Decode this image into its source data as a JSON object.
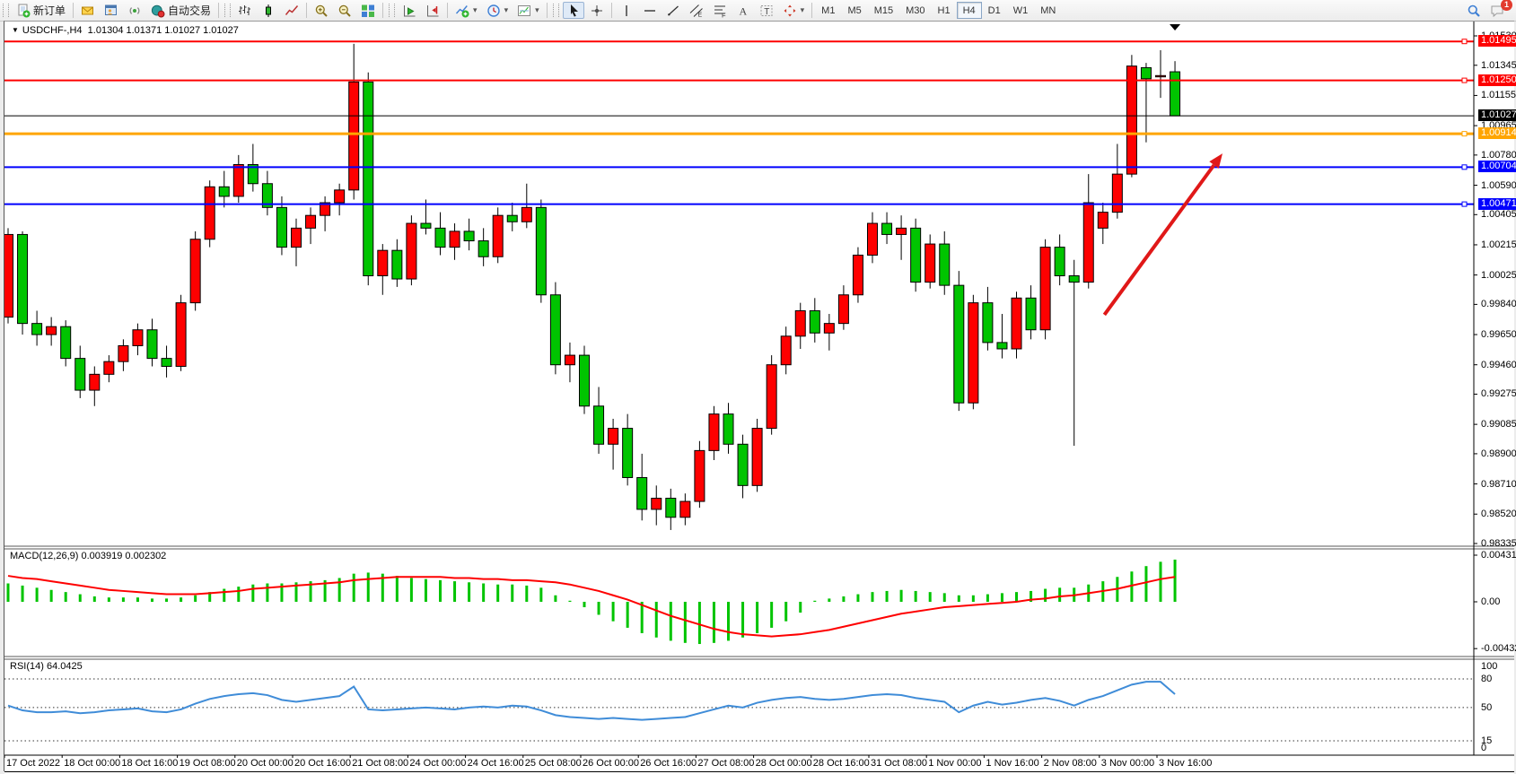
{
  "toolbar": {
    "new_order_label": "新订单",
    "autotrading_label": "自动交易",
    "groups": [
      {
        "handle": true,
        "items": [
          {
            "name": "new-order-button",
            "icon": "doc-plus",
            "label_key": "new_order_label"
          }
        ]
      },
      {
        "handle": false,
        "items": [
          {
            "name": "metaeditor-button",
            "icon": "envelope"
          },
          {
            "name": "market-watch-button",
            "icon": "market"
          },
          {
            "name": "broadcast-button",
            "icon": "broadcast"
          },
          {
            "name": "autotrading-button",
            "icon": "autotrade",
            "label_key": "autotrading_label"
          }
        ]
      },
      {
        "handle": true,
        "items": [
          {
            "name": "bar-chart-button",
            "icon": "barchart"
          },
          {
            "name": "candlestick-chart-button",
            "icon": "candle"
          },
          {
            "name": "line-chart-button",
            "icon": "linechart"
          }
        ]
      },
      {
        "handle": false,
        "items": [
          {
            "name": "zoom-in-button",
            "icon": "zoom-in"
          },
          {
            "name": "zoom-out-button",
            "icon": "zoom-out"
          },
          {
            "name": "tile-windows-button",
            "icon": "tiles"
          }
        ]
      },
      {
        "handle": true,
        "items": [
          {
            "name": "auto-scroll-button",
            "icon": "autoscroll"
          },
          {
            "name": "chart-shift-button",
            "icon": "chart-shift"
          }
        ]
      },
      {
        "handle": false,
        "items": [
          {
            "name": "indicators-button",
            "icon": "indicators",
            "dropdown": true
          },
          {
            "name": "periods-button",
            "icon": "clock",
            "dropdown": true
          },
          {
            "name": "templates-button",
            "icon": "template",
            "dropdown": true
          }
        ]
      },
      {
        "handle": true,
        "items": [
          {
            "name": "cursor-button",
            "icon": "cursor",
            "pressed": true
          },
          {
            "name": "crosshair-button",
            "icon": "crosshair"
          }
        ]
      },
      {
        "handle": false,
        "items": [
          {
            "name": "vertical-line-button",
            "icon": "vline"
          },
          {
            "name": "horizontal-line-button",
            "icon": "hline"
          },
          {
            "name": "trendline-button",
            "icon": "trendline"
          },
          {
            "name": "equidistant-channel-button",
            "icon": "channel"
          },
          {
            "name": "fibonacci-button",
            "icon": "fibo"
          },
          {
            "name": "text-button",
            "icon": "text-a"
          },
          {
            "name": "text-label-button",
            "icon": "text-label"
          },
          {
            "name": "arrows-button",
            "icon": "shapes",
            "dropdown": true
          }
        ]
      }
    ],
    "timeframes": [
      "M1",
      "M5",
      "M15",
      "M30",
      "H1",
      "H4",
      "D1",
      "W1",
      "MN"
    ],
    "active_timeframe": "H4",
    "notification_count": "1"
  },
  "header": {
    "symbol": "USDCHF-,H4",
    "ohlc": "1.01304 1.01371 1.01027 1.01027"
  },
  "chart_data": {
    "type": "candlestick",
    "symbol": "USDCHF-",
    "timeframe": "H4",
    "open": "1.01304",
    "high": "1.01371",
    "low": "1.01027",
    "close": "1.01027",
    "price_axis_ticks": [
      "1.01530",
      "1.01345",
      "1.01155",
      "1.00965",
      "1.00780",
      "1.00590",
      "1.00405",
      "1.00215",
      "1.00025",
      "0.99840",
      "0.99650",
      "0.99460",
      "0.99275",
      "0.99085",
      "0.98900",
      "0.98710",
      "0.98520",
      "0.98335"
    ],
    "horizontal_lines": [
      {
        "price": 1.01495,
        "label": "1.01495",
        "color": "#fe0000",
        "width": 2
      },
      {
        "price": 1.0125,
        "label": "1.01250",
        "color": "#fe0000",
        "width": 2
      },
      {
        "price": 1.01027,
        "label": "1.01027",
        "color": "#000000",
        "width": 1
      },
      {
        "price": 1.00914,
        "label": "1.00914",
        "color": "#ffa500",
        "width": 3
      },
      {
        "price": 1.00704,
        "label": "1.00704",
        "color": "#0000fe",
        "width": 2
      },
      {
        "price": 1.00471,
        "label": "1.00471",
        "color": "#0000fe",
        "width": 2
      }
    ],
    "time_labels": [
      "17 Oct 2022",
      "18 Oct 00:00",
      "18 Oct 16:00",
      "19 Oct 08:00",
      "20 Oct 00:00",
      "20 Oct 16:00",
      "21 Oct 08:00",
      "24 Oct 00:00",
      "24 Oct 16:00",
      "25 Oct 08:00",
      "26 Oct 00:00",
      "26 Oct 16:00",
      "27 Oct 08:00",
      "28 Oct 00:00",
      "28 Oct 16:00",
      "31 Oct 08:00",
      "1 Nov 00:00",
      "1 Nov 16:00",
      "2 Nov 08:00",
      "3 Nov 00:00",
      "3 Nov 16:00"
    ],
    "candles": [
      [
        0.9976,
        1.0032,
        0.9972,
        1.0028
      ],
      [
        1.0028,
        1.003,
        0.9965,
        0.9972
      ],
      [
        0.9972,
        0.998,
        0.9958,
        0.9965
      ],
      [
        0.9965,
        0.9976,
        0.9958,
        0.997
      ],
      [
        0.997,
        0.9974,
        0.9945,
        0.995
      ],
      [
        0.995,
        0.9958,
        0.9925,
        0.993
      ],
      [
        0.993,
        0.9945,
        0.992,
        0.994
      ],
      [
        0.994,
        0.9952,
        0.9935,
        0.9948
      ],
      [
        0.9948,
        0.9962,
        0.9942,
        0.9958
      ],
      [
        0.9958,
        0.9972,
        0.9952,
        0.9968
      ],
      [
        0.9968,
        0.9975,
        0.9945,
        0.995
      ],
      [
        0.995,
        0.9958,
        0.9938,
        0.9945
      ],
      [
        0.9945,
        0.999,
        0.9942,
        0.9985
      ],
      [
        0.9985,
        1.003,
        0.998,
        1.0025
      ],
      [
        1.0025,
        1.0062,
        1.002,
        1.0058
      ],
      [
        1.0058,
        1.0068,
        1.0045,
        1.0052
      ],
      [
        1.0052,
        1.0078,
        1.0048,
        1.0072
      ],
      [
        1.0072,
        1.0085,
        1.0055,
        1.006
      ],
      [
        1.006,
        1.0068,
        1.004,
        1.0045
      ],
      [
        1.0045,
        1.0052,
        1.0015,
        1.002
      ],
      [
        1.002,
        1.0038,
        1.0008,
        1.0032
      ],
      [
        1.0032,
        1.0045,
        1.0022,
        1.004
      ],
      [
        1.004,
        1.0052,
        1.003,
        1.0048
      ],
      [
        1.0048,
        1.006,
        1.004,
        1.0056
      ],
      [
        1.0056,
        1.0148,
        1.005,
        1.0124
      ],
      [
        1.0124,
        1.013,
        0.9996,
        1.0002
      ],
      [
        1.0002,
        1.0022,
        0.999,
        1.0018
      ],
      [
        1.0018,
        1.0025,
        0.9995,
        1.0
      ],
      [
        1.0,
        1.004,
        0.9996,
        1.0035
      ],
      [
        1.0035,
        1.005,
        1.0028,
        1.0032
      ],
      [
        1.0032,
        1.0042,
        1.0015,
        1.002
      ],
      [
        1.002,
        1.0035,
        1.0012,
        1.003
      ],
      [
        1.003,
        1.0038,
        1.0018,
        1.0024
      ],
      [
        1.0024,
        1.0032,
        1.0008,
        1.0014
      ],
      [
        1.0014,
        1.0045,
        1.001,
        1.004
      ],
      [
        1.004,
        1.0048,
        1.003,
        1.0036
      ],
      [
        1.0036,
        1.006,
        1.0032,
        1.0045
      ],
      [
        1.0045,
        1.005,
        0.9985,
        0.999
      ],
      [
        0.999,
        0.9998,
        0.994,
        0.9946
      ],
      [
        0.9946,
        0.996,
        0.9935,
        0.9952
      ],
      [
        0.9952,
        0.9958,
        0.9915,
        0.992
      ],
      [
        0.992,
        0.9932,
        0.989,
        0.9896
      ],
      [
        0.9896,
        0.9912,
        0.988,
        0.9906
      ],
      [
        0.9906,
        0.9915,
        0.987,
        0.9875
      ],
      [
        0.9875,
        0.989,
        0.9848,
        0.9855
      ],
      [
        0.9855,
        0.987,
        0.9845,
        0.9862
      ],
      [
        0.9862,
        0.9868,
        0.9842,
        0.985
      ],
      [
        0.985,
        0.9865,
        0.9845,
        0.986
      ],
      [
        0.986,
        0.9898,
        0.9856,
        0.9892
      ],
      [
        0.9892,
        0.992,
        0.9886,
        0.9915
      ],
      [
        0.9915,
        0.9922,
        0.989,
        0.9896
      ],
      [
        0.9896,
        0.9902,
        0.9862,
        0.987
      ],
      [
        0.987,
        0.9912,
        0.9866,
        0.9906
      ],
      [
        0.9906,
        0.9952,
        0.9902,
        0.9946
      ],
      [
        0.9946,
        0.997,
        0.994,
        0.9964
      ],
      [
        0.9964,
        0.9985,
        0.9956,
        0.998
      ],
      [
        0.998,
        0.9988,
        0.996,
        0.9966
      ],
      [
        0.9966,
        0.9978,
        0.9955,
        0.9972
      ],
      [
        0.9972,
        0.9996,
        0.9968,
        0.999
      ],
      [
        0.999,
        1.002,
        0.9985,
        1.0015
      ],
      [
        1.0015,
        1.0042,
        1.001,
        1.0035
      ],
      [
        1.0035,
        1.0042,
        1.0022,
        1.0028
      ],
      [
        1.0028,
        1.004,
        1.0012,
        1.0032
      ],
      [
        1.0032,
        1.0038,
        0.9992,
        0.9998
      ],
      [
        0.9998,
        1.0028,
        0.9994,
        1.0022
      ],
      [
        1.0022,
        1.003,
        0.999,
        0.9996
      ],
      [
        0.9996,
        1.0005,
        0.9917,
        0.9922
      ],
      [
        0.9922,
        0.999,
        0.9918,
        0.9985
      ],
      [
        0.9985,
        0.9995,
        0.9955,
        0.996
      ],
      [
        0.996,
        0.9978,
        0.995,
        0.9956
      ],
      [
        0.9956,
        0.9992,
        0.995,
        0.9988
      ],
      [
        0.9988,
        0.9996,
        0.9962,
        0.9968
      ],
      [
        0.9968,
        1.0025,
        0.9962,
        1.002
      ],
      [
        1.002,
        1.0028,
        0.9996,
        1.0002
      ],
      [
        1.0002,
        1.0012,
        0.9895,
        0.9998
      ],
      [
        0.9998,
        1.0066,
        0.9994,
        1.0048
      ],
      [
        1.0032,
        1.0048,
        1.0022,
        1.0042
      ],
      [
        1.0042,
        1.0085,
        1.0038,
        1.0066
      ],
      [
        1.0066,
        1.0141,
        1.0064,
        1.0134
      ],
      [
        1.0133,
        1.0136,
        1.0086,
        1.0126
      ],
      [
        1.0128,
        1.0144,
        1.0114,
        1.0128
      ],
      [
        1.01304,
        1.01371,
        1.01027,
        1.01027
      ]
    ],
    "colors": {
      "bull": "#fe0000",
      "bear": "#00c400",
      "wick": "#000000",
      "body_outline": "#000000",
      "background": "#ffffff"
    },
    "macd": {
      "title": "MACD(12,26,9)",
      "values": "0.003919 0.002302",
      "axis_ticks": [
        {
          "label": "0.004312",
          "v": 0.004312
        },
        {
          "label": "0.00",
          "v": 0
        },
        {
          "label": "-0.004328",
          "v": -0.004328
        }
      ],
      "hist_color": "#00c400",
      "signal_color": "#fe0000",
      "histogram": [
        0.0017,
        0.0015,
        0.0013,
        0.0011,
        0.0009,
        0.0007,
        0.0005,
        0.0004,
        0.0004,
        0.0004,
        0.0003,
        0.0003,
        0.0004,
        0.0006,
        0.0009,
        0.0012,
        0.0014,
        0.0016,
        0.0017,
        0.0017,
        0.0018,
        0.0019,
        0.002,
        0.0022,
        0.0026,
        0.0027,
        0.0026,
        0.0024,
        0.0022,
        0.0021,
        0.002,
        0.0019,
        0.0018,
        0.0017,
        0.0016,
        0.0016,
        0.0015,
        0.0013,
        0.0006,
        0.0001,
        -0.0005,
        -0.0012,
        -0.0018,
        -0.0024,
        -0.0029,
        -0.0033,
        -0.0036,
        -0.0038,
        -0.0039,
        -0.0038,
        -0.0036,
        -0.0033,
        -0.0029,
        -0.0024,
        -0.0018,
        -0.001,
        0.0001,
        0.0003,
        0.0005,
        0.0007,
        0.0009,
        0.001,
        0.0011,
        0.001,
        0.0009,
        0.0008,
        0.0006,
        0.0006,
        0.0007,
        0.0008,
        0.0009,
        0.001,
        0.0012,
        0.0013,
        0.0013,
        0.0016,
        0.0019,
        0.0023,
        0.0028,
        0.0033,
        0.0037,
        0.0039
      ],
      "signal": [
        0.0024,
        0.0022,
        0.0021,
        0.0019,
        0.0017,
        0.0015,
        0.0013,
        0.0011,
        0.001,
        0.0009,
        0.0008,
        0.0007,
        0.0007,
        0.0007,
        0.0008,
        0.0009,
        0.001,
        0.0012,
        0.0013,
        0.0014,
        0.0015,
        0.0016,
        0.0017,
        0.0018,
        0.002,
        0.0021,
        0.0022,
        0.0023,
        0.0023,
        0.0023,
        0.0023,
        0.0022,
        0.0022,
        0.0021,
        0.0021,
        0.002,
        0.002,
        0.0019,
        0.0018,
        0.0016,
        0.0013,
        0.001,
        0.0006,
        0.0002,
        -0.0003,
        -0.0008,
        -0.0013,
        -0.0017,
        -0.0021,
        -0.0025,
        -0.0028,
        -0.003,
        -0.0031,
        -0.0032,
        -0.0031,
        -0.003,
        -0.0028,
        -0.0026,
        -0.0023,
        -0.002,
        -0.0017,
        -0.0014,
        -0.0011,
        -0.0009,
        -0.0007,
        -0.0005,
        -0.0004,
        -0.0003,
        -0.0002,
        -0.0001,
        0.0,
        0.0002,
        0.0003,
        0.0005,
        0.0006,
        0.0008,
        0.001,
        0.0012,
        0.0015,
        0.0018,
        0.0021,
        0.0023
      ]
    },
    "rsi": {
      "title": "RSI(14)",
      "value": "64.0425",
      "color": "#3f8cd8",
      "levels": [
        80,
        50,
        15
      ],
      "axis_ticks": [
        {
          "label": "100",
          "v": 100
        },
        {
          "label": "80",
          "v": 80
        },
        {
          "label": "50",
          "v": 50
        },
        {
          "label": "15",
          "v": 15
        },
        {
          "label": "0",
          "v": 0
        }
      ],
      "series": [
        52,
        47,
        45,
        45,
        46,
        44,
        45,
        47,
        48,
        49,
        46,
        45,
        48,
        54,
        59,
        62,
        64,
        65,
        63,
        58,
        56,
        58,
        60,
        62,
        72,
        48,
        47,
        48,
        49,
        50,
        49,
        48,
        50,
        51,
        50,
        52,
        51,
        47,
        42,
        40,
        39,
        38,
        39,
        38,
        37,
        38,
        39,
        40,
        44,
        48,
        52,
        50,
        55,
        58,
        60,
        61,
        59,
        58,
        59,
        61,
        63,
        64,
        63,
        60,
        58,
        56,
        45,
        52,
        56,
        53,
        55,
        58,
        60,
        57,
        52,
        58,
        62,
        68,
        74,
        77,
        77,
        64
      ]
    },
    "trend_arrow": {
      "from_bar": 76.1,
      "from_price": 0.99775,
      "to_bar": 84.3,
      "to_price": 1.0079,
      "color": "#e01818"
    },
    "last_bar_marker_bar": 81
  }
}
